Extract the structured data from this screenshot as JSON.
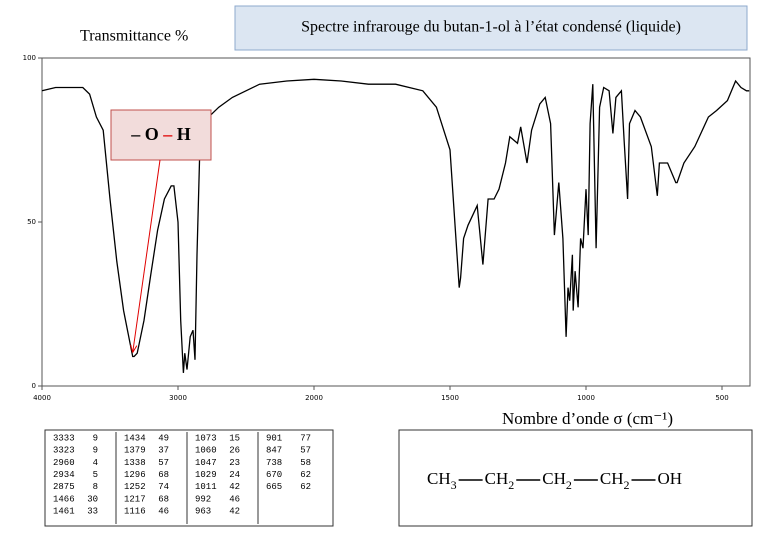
{
  "chart_data": {
    "type": "line",
    "title": "Spectre infrarouge du butan-1-ol à l’état condensé (liquide)",
    "y_label": "Transmittance %",
    "x_label": "Nombre d’onde σ (cm⁻¹)",
    "annotation": {
      "parts": [
        "– O ",
        "–",
        " H"
      ],
      "x": 3333,
      "y": 9
    },
    "color": "#000000",
    "xlim": [
      4000,
      400
    ],
    "xticks": [
      4000,
      3000,
      2000,
      1500,
      1000,
      500
    ],
    "ylim": [
      0,
      100
    ],
    "yticks": [
      0,
      50,
      100
    ],
    "x": [
      4000,
      3900,
      3800,
      3700,
      3650,
      3600,
      3550,
      3500,
      3450,
      3400,
      3350,
      3333,
      3323,
      3300,
      3250,
      3200,
      3150,
      3100,
      3050,
      3030,
      3000,
      2980,
      2960,
      2950,
      2934,
      2910,
      2890,
      2875,
      2860,
      2840,
      2800,
      2700,
      2600,
      2500,
      2400,
      2200,
      2000,
      1900,
      1800,
      1700,
      1600,
      1550,
      1500,
      1466,
      1461,
      1450,
      1434,
      1400,
      1379,
      1360,
      1338,
      1320,
      1296,
      1280,
      1252,
      1240,
      1217,
      1200,
      1170,
      1150,
      1130,
      1116,
      1100,
      1085,
      1073,
      1066,
      1060,
      1050,
      1047,
      1040,
      1029,
      1020,
      1011,
      1000,
      992,
      985,
      975,
      963,
      950,
      935,
      915,
      901,
      890,
      870,
      860,
      847,
      840,
      820,
      800,
      760,
      738,
      730,
      700,
      670,
      665,
      640,
      600,
      550,
      520,
      480,
      450,
      430,
      410,
      400
    ],
    "values": [
      90,
      91,
      91,
      91,
      89,
      82,
      78,
      57,
      38,
      23,
      12.5,
      9,
      9,
      10,
      20,
      34,
      47.5,
      57,
      61,
      61,
      50,
      20,
      4,
      10,
      5,
      15,
      17,
      8,
      40,
      72,
      81,
      85,
      88,
      90,
      92,
      93,
      93.5,
      93,
      92,
      92,
      90,
      85,
      72,
      30,
      33,
      45,
      49,
      55,
      37,
      57,
      57,
      60,
      68,
      76,
      74,
      79,
      68,
      78,
      86,
      88,
      80,
      46,
      62,
      45,
      15,
      30,
      26,
      40,
      23,
      35,
      24,
      45,
      42,
      60,
      46,
      80,
      92,
      42,
      85,
      91,
      90,
      77,
      88,
      90,
      75,
      57,
      80,
      84,
      82,
      73,
      58,
      68,
      68,
      62,
      62,
      68,
      73,
      82,
      84,
      87,
      93,
      91,
      90,
      90
    ]
  },
  "peak_table": [
    [
      [
        3333,
        9
      ],
      [
        3323,
        9
      ],
      [
        2960,
        4
      ],
      [
        2934,
        5
      ],
      [
        2875,
        8
      ],
      [
        1466,
        30
      ],
      [
        1461,
        33
      ]
    ],
    [
      [
        1434,
        49
      ],
      [
        1379,
        37
      ],
      [
        1338,
        57
      ],
      [
        1296,
        68
      ],
      [
        1252,
        74
      ],
      [
        1217,
        68
      ],
      [
        1116,
        46
      ]
    ],
    [
      [
        1073,
        15
      ],
      [
        1060,
        26
      ],
      [
        1047,
        23
      ],
      [
        1029,
        24
      ],
      [
        1011,
        42
      ],
      [
        992,
        46
      ],
      [
        963,
        42
      ]
    ],
    [
      [
        901,
        77
      ],
      [
        847,
        57
      ],
      [
        738,
        58
      ],
      [
        670,
        62
      ],
      [
        665,
        62
      ]
    ]
  ],
  "formula": [
    {
      "text": "CH",
      "sub": "3"
    },
    {
      "text": "CH",
      "sub": "2"
    },
    {
      "text": "CH",
      "sub": "2"
    },
    {
      "text": "CH",
      "sub": "2"
    },
    {
      "text": "OH"
    }
  ]
}
